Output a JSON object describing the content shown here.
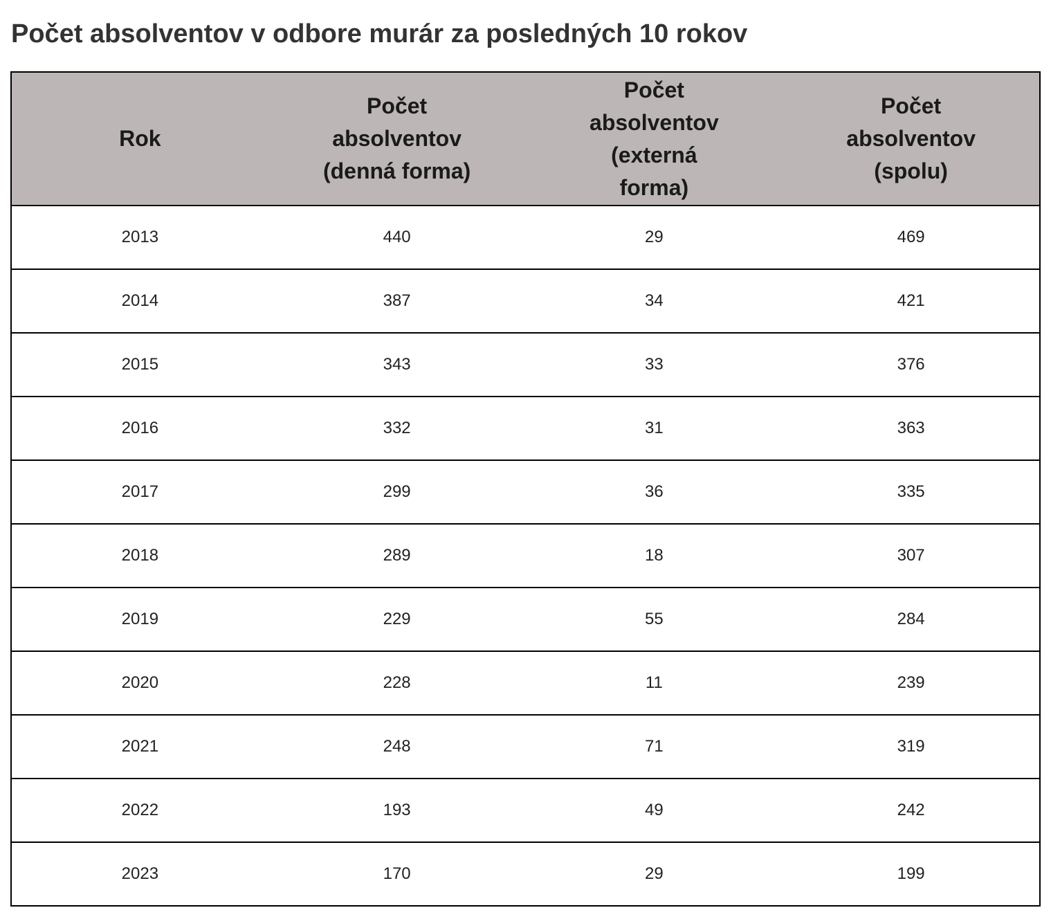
{
  "title": "Počet absolventov v odbore murár za posledných 10 rokov",
  "chart_data": {
    "type": "table",
    "title": "Počet absolventov v odbore murár za posledných 10 rokov",
    "columns": [
      "Rok",
      "Počet absolventov (denná forma)",
      "Počet absolventov (externá forma)",
      "Počet absolventov (spolu)"
    ],
    "rows": [
      [
        "2013",
        "440",
        "29",
        "469"
      ],
      [
        "2014",
        "387",
        "34",
        "421"
      ],
      [
        "2015",
        "343",
        "33",
        "376"
      ],
      [
        "2016",
        "332",
        "31",
        "363"
      ],
      [
        "2017",
        "299",
        "36",
        "335"
      ],
      [
        "2018",
        "289",
        "18",
        "307"
      ],
      [
        "2019",
        "229",
        "55",
        "284"
      ],
      [
        "2020",
        "228",
        "11",
        "239"
      ],
      [
        "2021",
        "248",
        "71",
        "319"
      ],
      [
        "2022",
        "193",
        "49",
        "242"
      ],
      [
        "2023",
        "170",
        "29",
        "199"
      ]
    ]
  },
  "colors": {
    "header_background": "#bdb6b6",
    "border": "#000000",
    "title_text": "#333333"
  }
}
